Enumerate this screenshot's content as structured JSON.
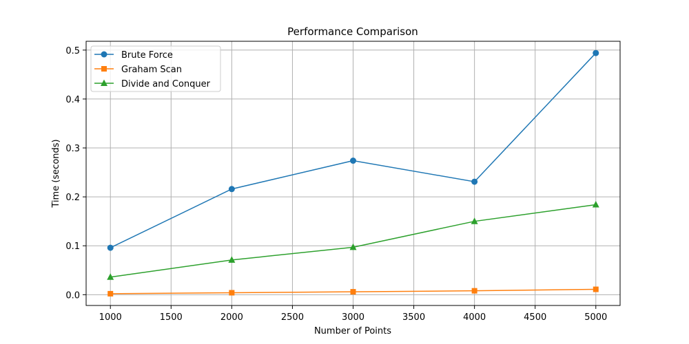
{
  "chart_data": {
    "type": "line",
    "title": "Performance Comparison",
    "xlabel": "Number of Points",
    "ylabel": "Time (seconds)",
    "x": [
      1000,
      2000,
      3000,
      4000,
      5000
    ],
    "xlim": [
      800,
      5200
    ],
    "ylim": [
      -0.022,
      0.518
    ],
    "xticks": [
      1000,
      1500,
      2000,
      2500,
      3000,
      3500,
      4000,
      4500,
      5000
    ],
    "yticks": [
      0.0,
      0.1,
      0.2,
      0.3,
      0.4,
      0.5
    ],
    "xtick_labels": [
      "1000",
      "1500",
      "2000",
      "2500",
      "3000",
      "3500",
      "4000",
      "4500",
      "5000"
    ],
    "ytick_labels": [
      "0.0",
      "0.1",
      "0.2",
      "0.3",
      "0.4",
      "0.5"
    ],
    "grid": true,
    "legend_position": "upper-left",
    "series": [
      {
        "name": "Brute Force",
        "marker": "circle",
        "color": "#1f77b4",
        "values": [
          0.096,
          0.216,
          0.274,
          0.231,
          0.494
        ]
      },
      {
        "name": "Graham Scan",
        "marker": "square",
        "color": "#ff7f0e",
        "values": [
          0.002,
          0.004,
          0.006,
          0.008,
          0.011
        ]
      },
      {
        "name": "Divide and Conquer",
        "marker": "triangle",
        "color": "#2ca02c",
        "values": [
          0.036,
          0.071,
          0.097,
          0.15,
          0.184
        ]
      }
    ]
  }
}
